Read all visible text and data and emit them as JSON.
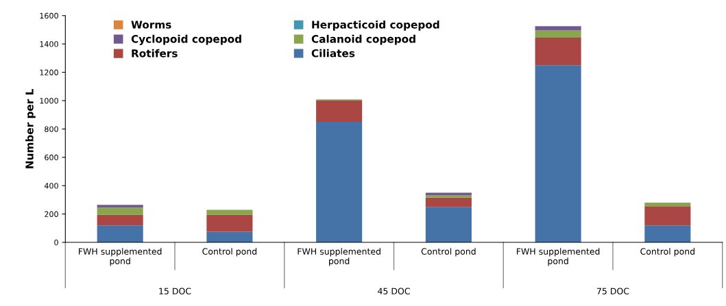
{
  "chart_data": {
    "type": "bar",
    "stacked": true,
    "ylabel": "Number per L",
    "categories": [
      "FWH supplemented pond",
      "Control pond",
      "FWH supplemented pond",
      "Control pond",
      "FWH supplemented pond",
      "Control pond"
    ],
    "series": [
      {
        "name": "Ciliates",
        "color": "#4572a7",
        "values": [
          120,
          75,
          850,
          250,
          1250,
          120
        ]
      },
      {
        "name": "Rotifers",
        "color": "#aa4643",
        "values": [
          75,
          120,
          150,
          65,
          195,
          135
        ]
      },
      {
        "name": "Calanoid copepod",
        "color": "#89a54e",
        "values": [
          50,
          35,
          8,
          17,
          50,
          25
        ]
      },
      {
        "name": "Cyclopoid copepod",
        "color": "#71588f",
        "values": [
          20,
          0,
          0,
          18,
          30,
          0
        ]
      },
      {
        "name": "Herpacticoid copepod",
        "color": "#4198af",
        "values": [
          0,
          0,
          0,
          0,
          0,
          0
        ]
      },
      {
        "name": "Worms",
        "color": "#db843d",
        "values": [
          0,
          0,
          0,
          0,
          0,
          0
        ]
      }
    ],
    "ylim": [
      0,
      1600
    ],
    "yticks": [
      0,
      200,
      400,
      600,
      800,
      1000,
      1200,
      1400,
      1600
    ],
    "grid": false,
    "legend": "top left",
    "annotations": [
      "15 DOC",
      "45 DOC",
      "75 DOC"
    ]
  }
}
